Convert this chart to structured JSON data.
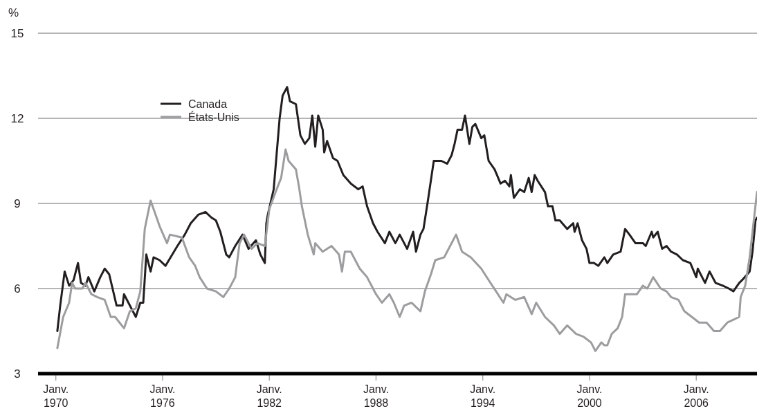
{
  "chart_data": {
    "type": "line",
    "ylabel": "%",
    "xlim": [
      "1969-01",
      "2009-06"
    ],
    "ylim": [
      3,
      15
    ],
    "yticks": [
      3,
      6,
      9,
      12,
      15
    ],
    "xticks": [
      {
        "value": "1970-01",
        "label": "Janv. 1970"
      },
      {
        "value": "1976-01",
        "label": "Janv. 1976"
      },
      {
        "value": "1982-01",
        "label": "Janv. 1982"
      },
      {
        "value": "1988-01",
        "label": "Janv. 1988"
      },
      {
        "value": "1994-01",
        "label": "Janv. 1994"
      },
      {
        "value": "2000-01",
        "label": "Janv. 2000"
      },
      {
        "value": "2006-01",
        "label": "Janv. 2006"
      }
    ],
    "grid": "y",
    "legend": "top left",
    "marker": "none",
    "line_style": "solid",
    "series": [
      {
        "name": "Canada",
        "color": "#231f20",
        "x": [
          "1970-02",
          "1970-04",
          "1970-07",
          "1970-10",
          "1971-01",
          "1971-04",
          "1971-06",
          "1971-09",
          "1971-11",
          "1972-03",
          "1972-07",
          "1972-10",
          "1973-01",
          "1973-06",
          "1973-10",
          "1973-11",
          "1974-04",
          "1974-07",
          "1974-10",
          "1974-12",
          "1975-02",
          "1975-05",
          "1975-07",
          "1975-11",
          "1976-03",
          "1976-11",
          "1977-04",
          "1977-08",
          "1978-01",
          "1978-06",
          "1978-10",
          "1979-01",
          "1979-04",
          "1979-08",
          "1979-10",
          "1980-02",
          "1980-07",
          "1980-11",
          "1981-04",
          "1981-07",
          "1981-10",
          "1981-11",
          "1981-12",
          "1982-04",
          "1982-08",
          "1982-10",
          "1983-01",
          "1983-03",
          "1983-07",
          "1983-10",
          "1984-01",
          "1984-04",
          "1984-06",
          "1984-08",
          "1984-10",
          "1985-01",
          "1985-02",
          "1985-04",
          "1985-08",
          "1985-11",
          "1986-03",
          "1986-08",
          "1987-01",
          "1987-04",
          "1987-07",
          "1987-11",
          "1988-02",
          "1988-07",
          "1988-10",
          "1989-02",
          "1989-05",
          "1989-10",
          "1990-02",
          "1990-04",
          "1990-07",
          "1990-09",
          "1990-12",
          "1991-04",
          "1991-07",
          "1991-09",
          "1992-01",
          "1992-04",
          "1992-06",
          "1992-08",
          "1992-11",
          "1993-01",
          "1993-04",
          "1993-06",
          "1993-08",
          "1993-12",
          "1994-02",
          "1994-05",
          "1994-09",
          "1995-01",
          "1995-04",
          "1995-07",
          "1995-08",
          "1995-10",
          "1996-02",
          "1996-05",
          "1996-08",
          "1996-10",
          "1996-12",
          "1997-02",
          "1997-07",
          "1997-09",
          "1997-12",
          "1998-02",
          "1998-05",
          "1998-10",
          "1999-02",
          "1999-03",
          "1999-05",
          "1999-08",
          "1999-11",
          "2000-01",
          "2000-04",
          "2000-07",
          "2000-11",
          "2001-01",
          "2001-05",
          "2001-10",
          "2002-01",
          "2002-04",
          "2002-08",
          "2003-01",
          "2003-03",
          "2003-07",
          "2003-08",
          "2003-11",
          "2004-02",
          "2004-05",
          "2004-08",
          "2004-12",
          "2005-04",
          "2005-09",
          "2006-01",
          "2006-02",
          "2006-07",
          "2006-10",
          "2007-02",
          "2007-07",
          "2007-11",
          "2008-02",
          "2008-06",
          "2008-08",
          "2009-01",
          "2009-03",
          "2009-05",
          "2009-06"
        ],
        "values": [
          4.5,
          5.4,
          6.6,
          6.1,
          6.3,
          6.9,
          6.2,
          6.1,
          6.4,
          5.9,
          6.4,
          6.7,
          6.5,
          5.4,
          5.4,
          5.8,
          5.3,
          5.0,
          5.5,
          5.5,
          7.2,
          6.6,
          7.1,
          7.0,
          6.8,
          7.5,
          7.9,
          8.3,
          8.6,
          8.7,
          8.5,
          8.4,
          8.0,
          7.2,
          7.1,
          7.5,
          7.9,
          7.4,
          7.7,
          7.2,
          6.9,
          8.3,
          8.6,
          9.5,
          12.0,
          12.8,
          13.1,
          12.6,
          12.5,
          11.4,
          11.1,
          11.3,
          12.1,
          11.0,
          12.1,
          11.6,
          10.8,
          11.2,
          10.6,
          10.5,
          10.0,
          9.7,
          9.5,
          9.6,
          8.9,
          8.3,
          8.0,
          7.6,
          8.0,
          7.6,
          7.9,
          7.4,
          8.0,
          7.3,
          7.9,
          8.1,
          9.1,
          10.5,
          10.5,
          10.5,
          10.4,
          10.7,
          11.1,
          11.6,
          11.6,
          12.1,
          11.1,
          11.7,
          11.8,
          11.3,
          11.4,
          10.5,
          10.2,
          9.7,
          9.8,
          9.6,
          10.0,
          9.2,
          9.5,
          9.4,
          9.9,
          9.4,
          10.0,
          9.8,
          9.4,
          8.9,
          8.9,
          8.4,
          8.4,
          8.1,
          8.3,
          8.0,
          8.3,
          7.7,
          7.4,
          6.9,
          6.9,
          6.8,
          7.1,
          6.9,
          7.2,
          7.3,
          8.1,
          7.9,
          7.6,
          7.6,
          7.5,
          8.0,
          7.8,
          8.0,
          7.4,
          7.5,
          7.3,
          7.2,
          7.0,
          6.9,
          6.4,
          6.7,
          6.2,
          6.6,
          6.2,
          6.1,
          6.0,
          5.9,
          6.2,
          6.3,
          6.6,
          7.3,
          8.4,
          8.5
        ]
      },
      {
        "name": "États-Unis",
        "color": "#9d9d9f",
        "x": [
          "1970-02",
          "1970-06",
          "1970-10",
          "1970-12",
          "1971-02",
          "1971-07",
          "1971-09",
          "1972-01",
          "1972-05",
          "1972-10",
          "1973-02",
          "1973-05",
          "1973-08",
          "1973-11",
          "1974-03",
          "1974-07",
          "1974-10",
          "1975-01",
          "1975-03",
          "1975-05",
          "1975-09",
          "1975-11",
          "1976-04",
          "1976-06",
          "1977-02",
          "1977-07",
          "1977-11",
          "1978-02",
          "1978-07",
          "1979-01",
          "1979-06",
          "1979-10",
          "1980-02",
          "1980-05",
          "1980-08",
          "1981-01",
          "1981-05",
          "1981-10",
          "1982-01",
          "1982-06",
          "1982-09",
          "1982-12",
          "1983-02",
          "1983-07",
          "1983-09",
          "1983-11",
          "1984-03",
          "1984-07",
          "1984-08",
          "1985-01",
          "1985-07",
          "1985-12",
          "1986-02",
          "1986-04",
          "1986-08",
          "1987-02",
          "1987-07",
          "1988-01",
          "1988-05",
          "1988-10",
          "1989-01",
          "1989-05",
          "1989-08",
          "1990-01",
          "1990-07",
          "1990-10",
          "1991-02",
          "1991-05",
          "1991-11",
          "1992-03",
          "1992-07",
          "1992-11",
          "1993-05",
          "1993-12",
          "1994-05",
          "1994-10",
          "1995-03",
          "1995-05",
          "1995-11",
          "1996-05",
          "1996-10",
          "1997-01",
          "1997-07",
          "1998-01",
          "1998-05",
          "1998-10",
          "1999-04",
          "1999-09",
          "2000-02",
          "2000-05",
          "2000-09",
          "2000-11",
          "2001-01",
          "2001-04",
          "2001-08",
          "2001-11",
          "2002-01",
          "2002-05",
          "2002-09",
          "2003-01",
          "2003-04",
          "2003-08",
          "2004-01",
          "2004-05",
          "2004-08",
          "2005-01",
          "2005-05",
          "2005-10",
          "2006-03",
          "2006-08",
          "2007-01",
          "2007-05",
          "2007-10",
          "2008-02",
          "2008-06",
          "2008-07",
          "2008-10",
          "2009-01",
          "2009-06"
        ],
        "values": [
          3.9,
          5.0,
          5.5,
          6.2,
          6.0,
          6.0,
          6.2,
          5.8,
          5.7,
          5.6,
          5.0,
          5.0,
          4.8,
          4.6,
          5.2,
          5.3,
          5.9,
          8.1,
          8.6,
          9.1,
          8.5,
          8.2,
          7.6,
          7.9,
          7.8,
          7.1,
          6.8,
          6.4,
          6.0,
          5.9,
          5.7,
          6.0,
          6.4,
          7.6,
          7.9,
          7.4,
          7.6,
          7.5,
          8.8,
          9.5,
          9.9,
          10.9,
          10.5,
          10.2,
          9.6,
          8.9,
          7.9,
          7.2,
          7.6,
          7.3,
          7.5,
          7.2,
          6.6,
          7.3,
          7.3,
          6.7,
          6.4,
          5.8,
          5.5,
          5.8,
          5.5,
          5.0,
          5.4,
          5.5,
          5.2,
          5.9,
          6.5,
          7.0,
          7.1,
          7.5,
          7.9,
          7.3,
          7.1,
          6.7,
          6.3,
          5.9,
          5.5,
          5.8,
          5.6,
          5.7,
          5.1,
          5.5,
          5.0,
          4.7,
          4.4,
          4.7,
          4.4,
          4.3,
          4.1,
          3.8,
          4.1,
          4.0,
          4.0,
          4.4,
          4.6,
          5.0,
          5.8,
          5.8,
          5.8,
          6.1,
          6.0,
          6.4,
          6.0,
          5.9,
          5.7,
          5.6,
          5.2,
          5.0,
          4.8,
          4.8,
          4.5,
          4.5,
          4.8,
          4.9,
          5.0,
          5.7,
          6.1,
          7.1,
          9.4
        ]
      }
    ]
  }
}
